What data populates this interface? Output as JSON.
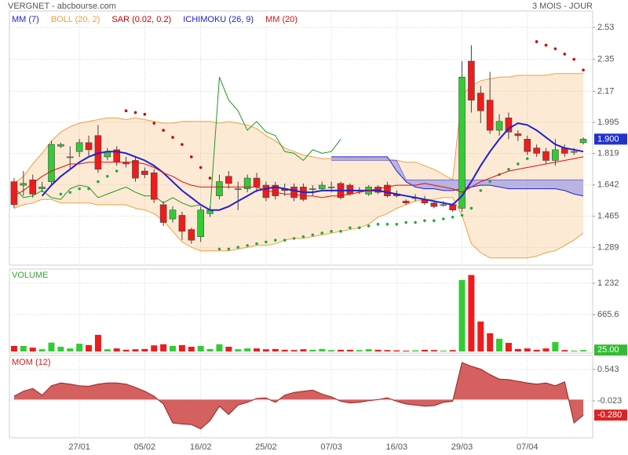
{
  "header": {
    "title": "VERGNET - abcbourse.com",
    "period": "3 MOIS - JOUR"
  },
  "chart_data": [
    {
      "type": "candlestick",
      "open": [
        1.66,
        1.64,
        1.67,
        1.62,
        1.66,
        1.86,
        1.8,
        1.83,
        1.88,
        1.92,
        1.8,
        1.84,
        1.77,
        1.78,
        1.72,
        1.71,
        1.53,
        1.45,
        1.47,
        1.39,
        1.35,
        1.48,
        1.58,
        1.69,
        1.62,
        1.62,
        1.68,
        1.64,
        1.64,
        1.62,
        1.63,
        1.63,
        1.62,
        1.62,
        1.63,
        1.65,
        1.64,
        1.61,
        1.59,
        1.63,
        1.64,
        1.59,
        1.55,
        1.57,
        1.56,
        1.54,
        1.53,
        1.53,
        1.51,
        2.34,
        2.16,
        2.12,
        1.95,
        2.02,
        1.93,
        1.9,
        1.85,
        1.83,
        1.78,
        1.85,
        1.83,
        1.88
      ],
      "high": [
        1.68,
        1.72,
        1.7,
        1.66,
        1.89,
        1.88,
        1.86,
        1.9,
        1.92,
        1.98,
        1.85,
        1.86,
        1.8,
        1.8,
        1.74,
        1.73,
        1.55,
        1.52,
        1.49,
        1.4,
        1.52,
        1.52,
        1.7,
        1.72,
        1.66,
        1.7,
        1.71,
        1.66,
        1.66,
        1.65,
        1.65,
        1.65,
        1.64,
        1.66,
        1.66,
        1.66,
        1.65,
        1.63,
        1.64,
        1.64,
        1.66,
        1.61,
        1.56,
        1.59,
        1.58,
        1.55,
        1.55,
        1.54,
        2.34,
        2.43,
        2.2,
        2.28,
        2.04,
        2.05,
        1.95,
        1.92,
        1.87,
        1.85,
        1.9,
        1.87,
        1.85,
        1.91
      ],
      "low": [
        1.51,
        1.58,
        1.57,
        1.6,
        1.64,
        1.85,
        1.73,
        1.8,
        1.8,
        1.71,
        1.78,
        1.75,
        1.74,
        1.66,
        1.68,
        1.54,
        1.41,
        1.43,
        1.33,
        1.31,
        1.32,
        1.46,
        1.56,
        1.62,
        1.5,
        1.6,
        1.6,
        1.55,
        1.56,
        1.58,
        1.55,
        1.55,
        1.58,
        1.61,
        1.6,
        1.56,
        1.58,
        1.59,
        1.58,
        1.59,
        1.57,
        1.57,
        1.53,
        1.55,
        1.53,
        1.51,
        1.52,
        1.49,
        1.49,
        2.05,
        1.99,
        1.93,
        1.92,
        1.9,
        1.89,
        1.81,
        1.8,
        1.76,
        1.75,
        1.8,
        1.81,
        1.87
      ],
      "close": [
        1.53,
        1.65,
        1.59,
        1.63,
        1.87,
        1.87,
        1.8,
        1.88,
        1.84,
        1.73,
        1.83,
        1.77,
        1.76,
        1.68,
        1.7,
        1.56,
        1.43,
        1.5,
        1.38,
        1.33,
        1.5,
        1.5,
        1.66,
        1.65,
        1.62,
        1.68,
        1.63,
        1.57,
        1.58,
        1.61,
        1.57,
        1.56,
        1.62,
        1.64,
        1.63,
        1.57,
        1.59,
        1.61,
        1.63,
        1.6,
        1.58,
        1.58,
        1.54,
        1.57,
        1.54,
        1.52,
        1.53,
        1.5,
        2.25,
        2.12,
        2.06,
        1.95,
        2.0,
        1.94,
        1.92,
        1.83,
        1.82,
        1.78,
        1.84,
        1.82,
        1.83,
        1.9
      ],
      "up_color": "#33cc33",
      "down_color": "#ee1c1c",
      "overlays": [
        {
          "type": "line",
          "name": "MM (7)",
          "color": "#2222cc",
          "values": [
            null,
            null,
            null,
            1.58,
            1.64,
            1.69,
            1.73,
            1.77,
            1.8,
            1.82,
            1.83,
            1.83,
            1.82,
            1.8,
            1.78,
            1.75,
            1.71,
            1.66,
            1.61,
            1.57,
            1.53,
            1.5,
            1.5,
            1.52,
            1.55,
            1.58,
            1.61,
            1.62,
            1.63,
            1.62,
            1.61,
            1.6,
            1.6,
            1.61,
            1.61,
            1.61,
            1.61,
            1.61,
            1.61,
            1.61,
            1.6,
            1.59,
            1.58,
            1.57,
            1.56,
            1.55,
            1.54,
            1.53,
            1.58,
            1.66,
            1.75,
            1.83,
            1.9,
            1.96,
            1.99,
            1.98,
            1.95,
            1.91,
            1.87,
            1.85,
            1.84,
            1.83
          ]
        },
        {
          "type": "band",
          "name": "BOLL (20, 2)",
          "color": "#f0a040",
          "upper": [
            1.65,
            1.69,
            1.76,
            1.82,
            1.89,
            1.94,
            1.97,
            1.99,
            2.0,
            2.01,
            2.02,
            2.02,
            2.01,
            2.02,
            2.01,
            2.0,
            1.99,
            1.99,
            2.0,
            2.0,
            2.0,
            2.0,
            1.99,
            2.0,
            1.99,
            1.98,
            1.96,
            1.92,
            1.89,
            1.85,
            1.83,
            1.81,
            1.8,
            1.79,
            1.79,
            1.79,
            1.79,
            1.79,
            1.79,
            1.79,
            1.79,
            1.78,
            1.77,
            1.77,
            1.75,
            1.73,
            1.7,
            1.67,
            2.15,
            2.2,
            2.23,
            2.24,
            2.25,
            2.25,
            2.26,
            2.26,
            2.26,
            2.26,
            2.27,
            2.27,
            2.27,
            2.27
          ],
          "lower": [
            1.51,
            1.53,
            1.54,
            1.56,
            1.56,
            1.54,
            1.54,
            1.54,
            1.54,
            1.53,
            1.53,
            1.53,
            1.53,
            1.51,
            1.5,
            1.48,
            1.44,
            1.38,
            1.32,
            1.29,
            1.27,
            1.27,
            1.27,
            1.27,
            1.28,
            1.29,
            1.3,
            1.3,
            1.31,
            1.33,
            1.34,
            1.34,
            1.35,
            1.36,
            1.37,
            1.38,
            1.39,
            1.4,
            1.42,
            1.46,
            1.48,
            1.51,
            1.53,
            1.55,
            1.56,
            1.56,
            1.57,
            1.57,
            1.47,
            1.31,
            1.26,
            1.23,
            1.23,
            1.23,
            1.23,
            1.23,
            1.24,
            1.26,
            1.27,
            1.3,
            1.33,
            1.37
          ]
        },
        {
          "type": "dots",
          "name": "SAR (0.02, 0.2)",
          "color": "#cc0000",
          "below_color": "#22aa44",
          "values": [
            null,
            null,
            null,
            null,
            null,
            1.59,
            1.6,
            1.62,
            1.62,
            1.66,
            1.69,
            1.72,
            2.06,
            2.05,
            2.04,
            1.99,
            1.95,
            1.91,
            1.87,
            1.8,
            1.74,
            1.68,
            1.28,
            1.28,
            1.29,
            1.3,
            1.31,
            1.32,
            1.33,
            1.33,
            1.34,
            1.35,
            1.36,
            1.37,
            1.38,
            1.38,
            1.4,
            1.4,
            1.41,
            1.42,
            1.42,
            1.42,
            1.43,
            1.43,
            1.44,
            1.44,
            1.45,
            1.46,
            1.47,
            1.51,
            1.61,
            1.66,
            1.7,
            1.73,
            1.76,
            1.79,
            2.45,
            2.43,
            2.41,
            2.38,
            2.35,
            2.29
          ]
        },
        {
          "type": "ichimoku",
          "name": "ICHIMOKU (26, 9)",
          "color": "#2222cc",
          "chikou_color": "#229922",
          "cloud_color": "#9c9ce6",
          "chikou": [
            1.63,
            1.57,
            1.58,
            1.61,
            1.57,
            1.56,
            1.62,
            1.64,
            1.63,
            1.57,
            1.59,
            1.61,
            1.63,
            1.6,
            1.58,
            1.58,
            1.54,
            1.57,
            1.54,
            1.52,
            1.53,
            1.5,
            2.25,
            2.12,
            2.06,
            1.95,
            2.0,
            1.94,
            1.92,
            1.83,
            1.82,
            1.78,
            1.84,
            1.82,
            1.83,
            1.9,
            null,
            null,
            null,
            null,
            null,
            null,
            null,
            null,
            null,
            null,
            null,
            null,
            null,
            null,
            null,
            null,
            null,
            null,
            null,
            null,
            null,
            null,
            null,
            null,
            null,
            null
          ],
          "span_a": [
            null,
            null,
            null,
            null,
            null,
            null,
            null,
            null,
            null,
            null,
            null,
            null,
            null,
            null,
            null,
            null,
            null,
            null,
            null,
            null,
            null,
            null,
            null,
            null,
            null,
            null,
            null,
            null,
            null,
            null,
            null,
            null,
            null,
            null,
            1.8,
            1.8,
            1.8,
            1.8,
            1.8,
            1.8,
            1.8,
            1.72,
            1.66,
            1.63,
            1.62,
            1.62,
            1.61,
            1.61,
            1.62,
            1.63,
            1.64,
            1.64,
            1.63,
            1.62,
            1.62,
            1.62,
            1.62,
            1.62,
            1.62,
            1.61,
            1.59,
            1.58
          ],
          "span_b": [
            null,
            null,
            null,
            null,
            null,
            null,
            null,
            null,
            null,
            null,
            null,
            null,
            null,
            null,
            null,
            null,
            null,
            null,
            null,
            null,
            null,
            null,
            null,
            null,
            null,
            null,
            null,
            null,
            null,
            null,
            null,
            null,
            null,
            null,
            1.78,
            1.78,
            1.78,
            1.78,
            1.78,
            1.78,
            1.78,
            1.78,
            1.67,
            1.67,
            1.67,
            1.67,
            1.67,
            1.67,
            1.67,
            1.67,
            1.67,
            1.67,
            1.67,
            1.67,
            1.67,
            1.67,
            1.67,
            1.67,
            1.67,
            1.67,
            1.67,
            1.67
          ]
        },
        {
          "type": "line",
          "name": "MM (20)",
          "color": "#dd1111",
          "values": [
            1.58,
            1.61,
            1.65,
            1.69,
            1.72,
            1.74,
            1.76,
            1.76,
            1.77,
            1.77,
            1.77,
            1.77,
            1.77,
            1.77,
            1.76,
            1.74,
            1.71,
            1.69,
            1.66,
            1.64,
            1.63,
            1.63,
            1.63,
            1.63,
            1.63,
            1.63,
            1.63,
            1.61,
            1.6,
            1.59,
            1.59,
            1.58,
            1.58,
            1.57,
            1.58,
            1.58,
            1.59,
            1.6,
            1.61,
            1.62,
            1.63,
            1.64,
            1.64,
            1.64,
            1.65,
            1.64,
            1.63,
            1.62,
            1.6,
            1.63,
            1.66,
            1.68,
            1.7,
            1.72,
            1.73,
            1.74,
            1.75,
            1.76,
            1.77,
            1.78,
            1.79,
            1.8
          ]
        }
      ],
      "ylim": [
        1.189,
        2.623
      ],
      "yticks": [
        2.53,
        2.35,
        2.17,
        1.995,
        1.819,
        1.642,
        1.465,
        1.289
      ],
      "grid": true,
      "last": {
        "value": 1.9,
        "label": "1.900"
      },
      "last_color": "#2233cc"
    },
    {
      "type": "bar",
      "title": "VOLUME",
      "values": [
        100,
        100,
        70,
        40,
        160,
        85,
        55,
        140,
        115,
        300,
        40,
        55,
        30,
        40,
        45,
        110,
        130,
        100,
        115,
        85,
        100,
        45,
        130,
        85,
        40,
        55,
        55,
        40,
        45,
        30,
        25,
        40,
        30,
        45,
        25,
        30,
        30,
        25,
        40,
        30,
        25,
        20,
        15,
        20,
        30,
        25,
        15,
        25,
        1290,
        1380,
        540,
        330,
        230,
        155,
        45,
        55,
        30,
        55,
        170,
        25,
        15,
        25
      ],
      "ylim": [
        -28,
        1487
      ],
      "yticks": [
        {
          "value": 1232,
          "label": "1 232"
        },
        665.6
      ],
      "grid": true,
      "last": {
        "value": 25,
        "label": "25.00"
      },
      "last_color": "#33bb33"
    },
    {
      "type": "area",
      "title": "MOM (12)",
      "color": "#cc4444",
      "categories": [
        null,
        null,
        null,
        null,
        null,
        null,
        null,
        "27/01",
        null,
        null,
        null,
        null,
        null,
        null,
        "05/02",
        null,
        null,
        null,
        null,
        null,
        "16/02",
        null,
        null,
        null,
        null,
        null,
        null,
        "25/02",
        null,
        null,
        null,
        null,
        null,
        null,
        "07/03",
        null,
        null,
        null,
        null,
        null,
        null,
        "16/03",
        null,
        null,
        null,
        null,
        null,
        null,
        "29/03",
        null,
        null,
        null,
        null,
        null,
        null,
        "07/04",
        null,
        null,
        null,
        null,
        null,
        null
      ],
      "values": [
        0.06,
        0.15,
        0.2,
        0.08,
        0.25,
        0.3,
        0.28,
        0.25,
        0.24,
        0.28,
        0.3,
        0.3,
        0.28,
        0.22,
        0.15,
        0.06,
        -0.08,
        -0.42,
        -0.44,
        -0.45,
        -0.53,
        -0.38,
        -0.12,
        -0.27,
        -0.1,
        -0.05,
        0.02,
        0.03,
        -0.05,
        0.08,
        0.13,
        0.15,
        0.17,
        0.1,
        0.05,
        -0.03,
        -0.06,
        -0.05,
        -0.02,
        0,
        0.03,
        -0.03,
        -0.08,
        -0.1,
        -0.12,
        -0.11,
        -0.05,
        -0.03,
        0.67,
        0.6,
        0.55,
        0.45,
        0.37,
        0.36,
        0.33,
        0.3,
        0.28,
        0.3,
        0.25,
        0.32,
        -0.42,
        -0.28
      ],
      "ylim": [
        -0.688,
        0.797
      ],
      "yticks": [
        0.543,
        -0.023
      ],
      "grid": true,
      "last": {
        "value": -0.28,
        "label": "-0.280"
      },
      "last_color": "#dd2222"
    }
  ]
}
